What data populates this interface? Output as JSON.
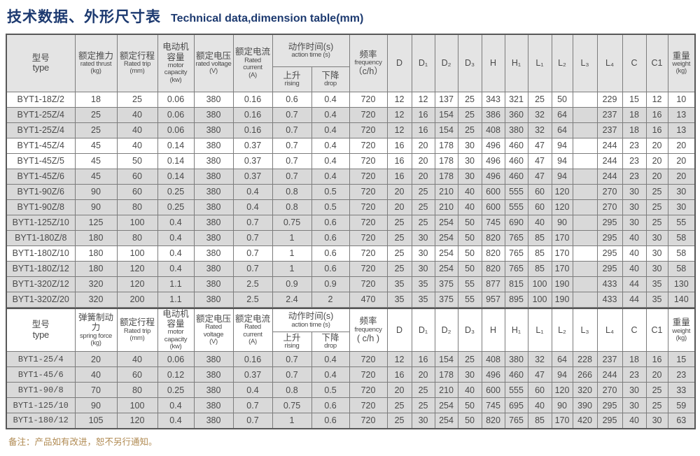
{
  "title": {
    "zh": "技术数据、外形尺寸表",
    "en": "Technical data,dimension table(mm)"
  },
  "note": "备注：产品如有改进，恕不另行通知。",
  "colors": {
    "title": "#1d3a70",
    "note_text": "#b08a52",
    "shaded_row": "#d9d9d9",
    "header1_bg": "#e4e4e4",
    "border": "#7c7c7c"
  },
  "dims": [
    "D",
    "D₁",
    "D₂",
    "D₃",
    "H",
    "H₁",
    "L₁",
    "L₂",
    "L₃",
    "L₄",
    "C",
    "C1"
  ],
  "header1": {
    "type": {
      "zh": "型号",
      "en": "type"
    },
    "thrust": {
      "zh": "额定推力",
      "en": "rated thrust",
      "unit": "(kg)"
    },
    "trip": {
      "zh": "额定行程",
      "en": "Rated trip",
      "unit": "(mm)"
    },
    "motor": {
      "zh": "电动机容量",
      "en": "motor capacity",
      "unit": "(kw)"
    },
    "voltage": {
      "zh": "额定电压",
      "en": "rated voltage",
      "unit": "(V)"
    },
    "current": {
      "zh": "额定电流",
      "en": "Rated current",
      "unit": "(A)"
    },
    "action": {
      "zh": "动作时间(s)",
      "en": "action time (s)"
    },
    "rising": {
      "zh": "上升",
      "en": "rising"
    },
    "drop": {
      "zh": "下降",
      "en": "drop"
    },
    "freq": {
      "zh": "频率",
      "en": "frequency",
      "unit": "（c/h）"
    },
    "weight": {
      "zh": "重量",
      "en": "weight",
      "unit": "(kg)"
    }
  },
  "header2": {
    "type": {
      "zh": "型号",
      "en": "type"
    },
    "force": {
      "zh": "弹簧制动力",
      "en": "spring force",
      "unit": "(kg)"
    },
    "trip": {
      "zh": "额定行程",
      "en": "Rated trip",
      "unit": "(mm)"
    },
    "motor": {
      "zh": "电动机容量",
      "en": "motor capacity",
      "unit": "(kw)"
    },
    "voltage": {
      "zh": "额定电压",
      "en": "Rated voltage",
      "unit": "(V)"
    },
    "current": {
      "zh": "额定电流",
      "en": "Rated current",
      "unit": "(A)"
    },
    "action": {
      "zh": "动作时间(s)",
      "en": "action time (s)"
    },
    "rising": {
      "zh": "上升",
      "en": "rising"
    },
    "drop": {
      "zh": "下降",
      "en": "drop"
    },
    "freq": {
      "zh": "频率",
      "en": "frequency",
      "unit": "( c/h )"
    },
    "weight": {
      "zh": "重量",
      "en": "weight",
      "unit": "(kg)"
    }
  },
  "table1": {
    "rows": [
      {
        "shaded": false,
        "cells": [
          "BYT1-18Z/2",
          "18",
          "25",
          "0.06",
          "380",
          "0.16",
          "0.6",
          "0.4",
          "720",
          "12",
          "12",
          "137",
          "25",
          "343",
          "321",
          "25",
          "50",
          "",
          "229",
          "15",
          "12",
          "10"
        ]
      },
      {
        "shaded": true,
        "cells": [
          "BYT1-25Z/4",
          "25",
          "40",
          "0.06",
          "380",
          "0.16",
          "0.7",
          "0.4",
          "720",
          "12",
          "16",
          "154",
          "25",
          "386",
          "360",
          "32",
          "64",
          "",
          "237",
          "18",
          "16",
          "13"
        ]
      },
      {
        "shaded": true,
        "cells": [
          "BYT1-25Z/4",
          "25",
          "40",
          "0.06",
          "380",
          "0.16",
          "0.7",
          "0.4",
          "720",
          "12",
          "16",
          "154",
          "25",
          "408",
          "380",
          "32",
          "64",
          "",
          "237",
          "18",
          "16",
          "13"
        ]
      },
      {
        "shaded": false,
        "cells": [
          "BYT1-45Z/4",
          "45",
          "40",
          "0.14",
          "380",
          "0.37",
          "0.7",
          "0.4",
          "720",
          "16",
          "20",
          "178",
          "30",
          "496",
          "460",
          "47",
          "94",
          "",
          "244",
          "23",
          "20",
          "20"
        ]
      },
      {
        "shaded": false,
        "cells": [
          "BYT1-45Z/5",
          "45",
          "50",
          "0.14",
          "380",
          "0.37",
          "0.7",
          "0.4",
          "720",
          "16",
          "20",
          "178",
          "30",
          "496",
          "460",
          "47",
          "94",
          "",
          "244",
          "23",
          "20",
          "20"
        ]
      },
      {
        "shaded": true,
        "cells": [
          "BYT1-45Z/6",
          "45",
          "60",
          "0.14",
          "380",
          "0.37",
          "0.7",
          "0.4",
          "720",
          "16",
          "20",
          "178",
          "30",
          "496",
          "460",
          "47",
          "94",
          "",
          "244",
          "23",
          "20",
          "20"
        ]
      },
      {
        "shaded": true,
        "cells": [
          "BYT1-90Z/6",
          "90",
          "60",
          "0.25",
          "380",
          "0.4",
          "0.8",
          "0.5",
          "720",
          "20",
          "25",
          "210",
          "40",
          "600",
          "555",
          "60",
          "120",
          "",
          "270",
          "30",
          "25",
          "30"
        ]
      },
      {
        "shaded": true,
        "cells": [
          "BYT1-90Z/8",
          "90",
          "80",
          "0.25",
          "380",
          "0.4",
          "0.8",
          "0.5",
          "720",
          "20",
          "25",
          "210",
          "40",
          "600",
          "555",
          "60",
          "120",
          "",
          "270",
          "30",
          "25",
          "30"
        ]
      },
      {
        "shaded": true,
        "cells": [
          "BYT1-125Z/10",
          "125",
          "100",
          "0.4",
          "380",
          "0.7",
          "0.75",
          "0.6",
          "720",
          "25",
          "25",
          "254",
          "50",
          "745",
          "690",
          "40",
          "90",
          "",
          "295",
          "30",
          "25",
          "55"
        ]
      },
      {
        "shaded": true,
        "cells": [
          "BYT1-180Z/8",
          "180",
          "80",
          "0.4",
          "380",
          "0.7",
          "1",
          "0.6",
          "720",
          "25",
          "30",
          "254",
          "50",
          "820",
          "765",
          "85",
          "170",
          "",
          "295",
          "40",
          "30",
          "58"
        ]
      },
      {
        "shaded": false,
        "cells": [
          "BYT1-180Z/10",
          "180",
          "100",
          "0.4",
          "380",
          "0.7",
          "1",
          "0.6",
          "720",
          "25",
          "30",
          "254",
          "50",
          "820",
          "765",
          "85",
          "170",
          "",
          "295",
          "40",
          "30",
          "58"
        ]
      },
      {
        "shaded": true,
        "cells": [
          "BYT1-180Z/12",
          "180",
          "120",
          "0.4",
          "380",
          "0.7",
          "1",
          "0.6",
          "720",
          "25",
          "30",
          "254",
          "50",
          "820",
          "765",
          "85",
          "170",
          "",
          "295",
          "40",
          "30",
          "58"
        ]
      },
      {
        "shaded": true,
        "cells": [
          "BYT1-320Z/12",
          "320",
          "120",
          "1.1",
          "380",
          "2.5",
          "0.9",
          "0.9",
          "720",
          "35",
          "35",
          "375",
          "55",
          "877",
          "815",
          "100",
          "190",
          "",
          "433",
          "44",
          "35",
          "130"
        ]
      },
      {
        "shaded": true,
        "cells": [
          "BYT1-320Z/20",
          "320",
          "200",
          "1.1",
          "380",
          "2.5",
          "2.4",
          "2",
          "470",
          "35",
          "35",
          "375",
          "55",
          "957",
          "895",
          "100",
          "190",
          "",
          "433",
          "44",
          "35",
          "140"
        ]
      }
    ]
  },
  "table2": {
    "rows": [
      {
        "shaded": true,
        "cells": [
          "BYT1-25/4",
          "20",
          "40",
          "0.06",
          "380",
          "0.16",
          "0.7",
          "0.4",
          "720",
          "12",
          "16",
          "154",
          "25",
          "408",
          "380",
          "32",
          "64",
          "228",
          "237",
          "18",
          "16",
          "15"
        ]
      },
      {
        "shaded": true,
        "cells": [
          "BYT1-45/6",
          "40",
          "60",
          "0.12",
          "380",
          "0.37",
          "0.7",
          "0.4",
          "720",
          "16",
          "20",
          "178",
          "30",
          "496",
          "460",
          "47",
          "94",
          "266",
          "244",
          "23",
          "20",
          "23"
        ]
      },
      {
        "shaded": true,
        "cells": [
          "BYT1-90/8",
          "70",
          "80",
          "0.25",
          "380",
          "0.4",
          "0.8",
          "0.5",
          "720",
          "20",
          "25",
          "210",
          "40",
          "600",
          "555",
          "60",
          "120",
          "320",
          "270",
          "30",
          "25",
          "33"
        ]
      },
      {
        "shaded": true,
        "cells": [
          "BYT1-125/10",
          "90",
          "100",
          "0.4",
          "380",
          "0.7",
          "0.75",
          "0.6",
          "720",
          "25",
          "25",
          "254",
          "50",
          "745",
          "695",
          "40",
          "90",
          "390",
          "295",
          "30",
          "25",
          "59"
        ]
      },
      {
        "shaded": true,
        "cells": [
          "BYT1-180/12",
          "105",
          "120",
          "0.4",
          "380",
          "0.7",
          "1",
          "0.6",
          "720",
          "25",
          "30",
          "254",
          "50",
          "820",
          "765",
          "85",
          "170",
          "420",
          "295",
          "40",
          "30",
          "63"
        ]
      }
    ]
  }
}
